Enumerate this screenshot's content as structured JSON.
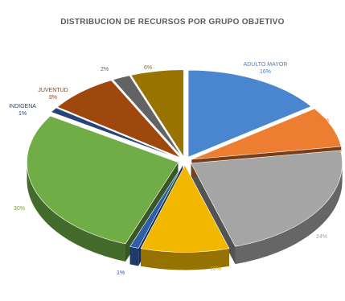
{
  "chart_data": {
    "type": "pie",
    "title": "DISTRIBUCION DE RECURSOS POR GRUPO OBJETIVO",
    "style": "3d-exploded",
    "slices": [
      {
        "name": "ADULTO MAYOR",
        "label": "ADULTO MAYOR 16%",
        "value": 16,
        "color": "#4a86cf"
      },
      {
        "name": "",
        "label": "8%",
        "value": 8,
        "color": "#ed7d31"
      },
      {
        "name": "",
        "label": "24%",
        "value": 24,
        "color": "#a5a5a5"
      },
      {
        "name": "",
        "label": "10%",
        "value": 10,
        "color": "#f2b800"
      },
      {
        "name": "",
        "label": "1%",
        "value": 1,
        "color": "#2f5ea8"
      },
      {
        "name": "",
        "label": "30%",
        "value": 30,
        "color": "#70ad47"
      },
      {
        "name": "INDIGENA",
        "label": "INDIGENA 1%",
        "value": 1,
        "color": "#264478"
      },
      {
        "name": "JUVENTUD",
        "label": "JUVENTUD 8%",
        "value": 8,
        "color": "#9e480e"
      },
      {
        "name": "",
        "label": "2%",
        "value": 2,
        "color": "#636363"
      },
      {
        "name": "",
        "label": "6%",
        "value": 6,
        "color": "#997300"
      }
    ]
  }
}
